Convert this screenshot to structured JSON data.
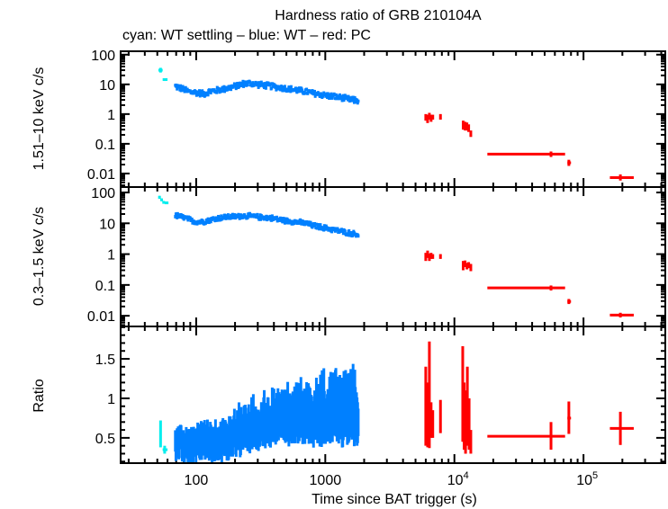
{
  "chart_data": {
    "type": "scatter",
    "title": "Hardness ratio of GRB 210104A",
    "subtitle": "cyan: WT settling – blue: WT – red: PC",
    "xlabel": "Time since BAT trigger (s)",
    "xscale": "log",
    "xlim": [
      26,
      430000
    ],
    "x_ticks": [
      {
        "value": 100,
        "label": "100",
        "sup": ""
      },
      {
        "value": 1000,
        "label": "1000",
        "sup": ""
      },
      {
        "value": 10000,
        "label": "10",
        "sup": "4"
      },
      {
        "value": 100000,
        "label": "10",
        "sup": "5"
      }
    ],
    "colors": {
      "wt_settling": "#00eeee",
      "wt": "#0080ff",
      "pc": "#ff0000",
      "axis": "#000000"
    },
    "panels": [
      {
        "id": "hard",
        "ylabel": "1.51–10 keV c/s",
        "yscale": "log",
        "ylim": [
          0.0035,
          130
        ],
        "y_ticks": [
          {
            "value": 100,
            "label": "100"
          },
          {
            "value": 10,
            "label": "10"
          },
          {
            "value": 1,
            "label": "1"
          },
          {
            "value": 0.1,
            "label": "0.1"
          },
          {
            "value": 0.01,
            "label": "0.01"
          }
        ],
        "series": [
          {
            "name": "WT settling",
            "color_key": "wt_settling",
            "points": [
              {
                "x": 53,
                "y": 30,
                "xlo": 51,
                "xhi": 55,
                "ylo": 25,
                "yhi": 36
              },
              {
                "x": 57,
                "y": 14.5,
                "xlo": 55,
                "xhi": 60,
                "ylo": 13,
                "yhi": 16
              }
            ]
          },
          {
            "name": "WT",
            "color_key": "wt",
            "trend": [
              [
                69,
                8.7
              ],
              [
                78,
                7.0
              ],
              [
                89,
                5.6
              ],
              [
                100,
                5.3
              ],
              [
                115,
                4.8
              ],
              [
                130,
                5.8
              ],
              [
                145,
                6.3
              ],
              [
                170,
                7.2
              ],
              [
                200,
                8.5
              ],
              [
                233,
                10.5
              ],
              [
                260,
                10.8
              ],
              [
                300,
                10.0
              ],
              [
                340,
                9.2
              ],
              [
                377,
                8.8
              ],
              [
                430,
                8.0
              ],
              [
                500,
                7.2
              ],
              [
                610,
                6.3
              ],
              [
                700,
                5.8
              ],
              [
                800,
                5.0
              ],
              [
                1000,
                4.3
              ],
              [
                1200,
                3.8
              ],
              [
                1400,
                3.4
              ],
              [
                1600,
                3.0
              ],
              [
                1800,
                2.8
              ]
            ],
            "scatter_dex": 0.09
          },
          {
            "name": "PC",
            "color_key": "pc",
            "points": [
              {
                "x": 6000,
                "y": 0.8,
                "xlo": 5900,
                "xhi": 6100,
                "ylo": 0.6,
                "yhi": 1.0
              },
              {
                "x": 6200,
                "y": 0.7,
                "xlo": 6100,
                "xhi": 6300,
                "ylo": 0.5,
                "yhi": 0.95
              },
              {
                "x": 6400,
                "y": 0.85,
                "xlo": 6300,
                "xhi": 6500,
                "ylo": 0.65,
                "yhi": 1.1
              },
              {
                "x": 6600,
                "y": 0.75,
                "xlo": 6500,
                "xhi": 6700,
                "ylo": 0.55,
                "yhi": 0.95
              },
              {
                "x": 6800,
                "y": 0.8,
                "xlo": 6700,
                "xhi": 6900,
                "ylo": 0.65,
                "yhi": 0.95
              },
              {
                "x": 7800,
                "y": 0.8,
                "xlo": 7700,
                "xhi": 7900,
                "ylo": 0.65,
                "yhi": 1.0
              },
              {
                "x": 11700,
                "y": 0.45,
                "xlo": 11500,
                "xhi": 11900,
                "ylo": 0.3,
                "yhi": 0.6
              },
              {
                "x": 12100,
                "y": 0.38,
                "xlo": 11900,
                "xhi": 12300,
                "ylo": 0.28,
                "yhi": 0.55
              },
              {
                "x": 12500,
                "y": 0.4,
                "xlo": 12300,
                "xhi": 12700,
                "ylo": 0.28,
                "yhi": 0.52
              },
              {
                "x": 12900,
                "y": 0.32,
                "xlo": 12700,
                "xhi": 13100,
                "ylo": 0.25,
                "yhi": 0.45
              },
              {
                "x": 13400,
                "y": 0.22,
                "xlo": 13200,
                "xhi": 13600,
                "ylo": 0.17,
                "yhi": 0.28
              },
              {
                "x": 56000,
                "y": 0.045,
                "xlo": 18000,
                "xhi": 72000,
                "ylo": 0.036,
                "yhi": 0.055
              },
              {
                "x": 77000,
                "y": 0.023,
                "xlo": 75000,
                "xhi": 80000,
                "ylo": 0.018,
                "yhi": 0.029
              },
              {
                "x": 193000,
                "y": 0.0073,
                "xlo": 160000,
                "xhi": 245000,
                "ylo": 0.0058,
                "yhi": 0.0093
              }
            ]
          }
        ]
      },
      {
        "id": "soft",
        "ylabel": "0.3–1.5 keV c/s",
        "yscale": "log",
        "ylim": [
          0.0045,
          150
        ],
        "y_ticks": [
          {
            "value": 100,
            "label": "100"
          },
          {
            "value": 10,
            "label": "10"
          },
          {
            "value": 1,
            "label": "1"
          },
          {
            "value": 0.1,
            "label": "0.1"
          },
          {
            "value": 0.01,
            "label": "0.01"
          }
        ],
        "series": [
          {
            "name": "WT settling",
            "color_key": "wt_settling",
            "points": [
              {
                "x": 52,
                "y": 70,
                "xlo": 51,
                "xhi": 53,
                "ylo": 62,
                "yhi": 78
              },
              {
                "x": 54,
                "y": 58,
                "xlo": 53,
                "xhi": 55,
                "ylo": 52,
                "yhi": 64
              },
              {
                "x": 56,
                "y": 48,
                "xlo": 55,
                "xhi": 57,
                "ylo": 43,
                "yhi": 53
              },
              {
                "x": 59,
                "y": 46,
                "xlo": 57,
                "xhi": 61,
                "ylo": 42,
                "yhi": 50
              }
            ]
          },
          {
            "name": "WT",
            "color_key": "wt",
            "trend": [
              [
                69,
                18
              ],
              [
                78,
                16
              ],
              [
                89,
                13
              ],
              [
                100,
                11
              ],
              [
                115,
                11.5
              ],
              [
                130,
                13
              ],
              [
                145,
                14.5
              ],
              [
                170,
                16
              ],
              [
                200,
                16.5
              ],
              [
                233,
                17.5
              ],
              [
                260,
                17
              ],
              [
                300,
                16
              ],
              [
                340,
                15.5
              ],
              [
                377,
                15
              ],
              [
                430,
                13.5
              ],
              [
                500,
                12
              ],
              [
                610,
                11
              ],
              [
                700,
                10
              ],
              [
                800,
                8.5
              ],
              [
                1000,
                7
              ],
              [
                1200,
                6
              ],
              [
                1400,
                5.2
              ],
              [
                1600,
                4.7
              ],
              [
                1800,
                4.3
              ]
            ],
            "scatter_dex": 0.07
          },
          {
            "name": "PC",
            "color_key": "pc",
            "points": [
              {
                "x": 6000,
                "y": 0.85,
                "xlo": 5900,
                "xhi": 6100,
                "ylo": 0.6,
                "yhi": 1.1
              },
              {
                "x": 6200,
                "y": 1.0,
                "xlo": 6100,
                "xhi": 6300,
                "ylo": 0.75,
                "yhi": 1.3
              },
              {
                "x": 6400,
                "y": 0.8,
                "xlo": 6300,
                "xhi": 6500,
                "ylo": 0.6,
                "yhi": 1.05
              },
              {
                "x": 6600,
                "y": 0.9,
                "xlo": 6500,
                "xhi": 6700,
                "ylo": 0.7,
                "yhi": 1.1
              },
              {
                "x": 6800,
                "y": 0.85,
                "xlo": 6700,
                "xhi": 6900,
                "ylo": 0.7,
                "yhi": 1.0
              },
              {
                "x": 7800,
                "y": 0.85,
                "xlo": 7700,
                "xhi": 7900,
                "ylo": 0.7,
                "yhi": 1.0
              },
              {
                "x": 11700,
                "y": 0.45,
                "xlo": 11500,
                "xhi": 11900,
                "ylo": 0.3,
                "yhi": 0.6
              },
              {
                "x": 12100,
                "y": 0.5,
                "xlo": 11900,
                "xhi": 12300,
                "ylo": 0.38,
                "yhi": 0.62
              },
              {
                "x": 12500,
                "y": 0.42,
                "xlo": 12300,
                "xhi": 12700,
                "ylo": 0.32,
                "yhi": 0.52
              },
              {
                "x": 12900,
                "y": 0.45,
                "xlo": 12700,
                "xhi": 13100,
                "ylo": 0.35,
                "yhi": 0.55
              },
              {
                "x": 13400,
                "y": 0.38,
                "xlo": 13200,
                "xhi": 13600,
                "ylo": 0.28,
                "yhi": 0.48
              },
              {
                "x": 56000,
                "y": 0.08,
                "xlo": 18000,
                "xhi": 72000,
                "ylo": 0.066,
                "yhi": 0.096
              },
              {
                "x": 77000,
                "y": 0.029,
                "xlo": 75000,
                "xhi": 80000,
                "ylo": 0.024,
                "yhi": 0.035
              },
              {
                "x": 193000,
                "y": 0.0105,
                "xlo": 160000,
                "xhi": 245000,
                "ylo": 0.0088,
                "yhi": 0.0125
              }
            ]
          }
        ]
      },
      {
        "id": "ratio",
        "ylabel": "Ratio",
        "yscale": "linear",
        "ylim": [
          0.18,
          1.91
        ],
        "y_ticks": [
          {
            "value": 1.5,
            "label": "1.5"
          },
          {
            "value": 1,
            "label": "1"
          },
          {
            "value": 0.5,
            "label": "0.5"
          }
        ],
        "y_minor_step": 0.1,
        "series": [
          {
            "name": "WT settling",
            "color_key": "wt_settling",
            "points": [
              {
                "x": 53,
                "y": 0.5,
                "xlo": 52,
                "xhi": 54,
                "ylo": 0.38,
                "yhi": 0.72
              },
              {
                "x": 57,
                "y": 0.35,
                "xlo": 55,
                "xhi": 60,
                "ylo": 0.3,
                "yhi": 0.4
              }
            ]
          },
          {
            "name": "WT",
            "color_key": "wt",
            "trend": [
              [
                69,
                0.42
              ],
              [
                78,
                0.4
              ],
              [
                89,
                0.38
              ],
              [
                100,
                0.4
              ],
              [
                115,
                0.45
              ],
              [
                130,
                0.38
              ],
              [
                145,
                0.4
              ],
              [
                170,
                0.45
              ],
              [
                200,
                0.5
              ],
              [
                233,
                0.55
              ],
              [
                260,
                0.58
              ],
              [
                300,
                0.6
              ],
              [
                340,
                0.62
              ],
              [
                377,
                0.65
              ],
              [
                430,
                0.68
              ],
              [
                500,
                0.7
              ],
              [
                610,
                0.72
              ],
              [
                700,
                0.72
              ],
              [
                800,
                0.7
              ],
              [
                1000,
                0.72
              ],
              [
                1200,
                0.72
              ],
              [
                1400,
                0.7
              ],
              [
                1600,
                0.7
              ],
              [
                1800,
                0.7
              ]
            ],
            "err_low": [
              0.12,
              0.3
            ],
            "err_high": [
              0.15,
              0.7
            ]
          },
          {
            "name": "PC",
            "color_key": "pc",
            "points": [
              {
                "x": 6000,
                "y": 0.9,
                "xlo": 5950,
                "xhi": 6050,
                "ylo": 0.4,
                "yhi": 1.4
              },
              {
                "x": 6200,
                "y": 0.8,
                "xlo": 6150,
                "xhi": 6250,
                "ylo": 0.38,
                "yhi": 1.2
              },
              {
                "x": 6400,
                "y": 1.1,
                "xlo": 6350,
                "xhi": 6450,
                "ylo": 0.37,
                "yhi": 1.72
              },
              {
                "x": 6600,
                "y": 0.75,
                "xlo": 6550,
                "xhi": 6650,
                "ylo": 0.5,
                "yhi": 0.95
              },
              {
                "x": 6800,
                "y": 0.7,
                "xlo": 6750,
                "xhi": 6850,
                "ylo": 0.5,
                "yhi": 0.85
              },
              {
                "x": 7800,
                "y": 0.77,
                "xlo": 7700,
                "xhi": 7900,
                "ylo": 0.56,
                "yhi": 0.98
              },
              {
                "x": 11600,
                "y": 0.9,
                "xlo": 11550,
                "xhi": 11650,
                "ylo": 0.45,
                "yhi": 1.66
              },
              {
                "x": 11900,
                "y": 0.8,
                "xlo": 11850,
                "xhi": 11950,
                "ylo": 0.35,
                "yhi": 1.2
              },
              {
                "x": 12200,
                "y": 0.7,
                "xlo": 12150,
                "xhi": 12250,
                "ylo": 0.3,
                "yhi": 1.1
              },
              {
                "x": 12600,
                "y": 0.9,
                "xlo": 12550,
                "xhi": 12650,
                "ylo": 0.4,
                "yhi": 1.4
              },
              {
                "x": 13000,
                "y": 0.6,
                "xlo": 12950,
                "xhi": 13050,
                "ylo": 0.35,
                "yhi": 1.0
              },
              {
                "x": 13400,
                "y": 0.45,
                "xlo": 13300,
                "xhi": 13500,
                "ylo": 0.3,
                "yhi": 0.6
              },
              {
                "x": 56000,
                "y": 0.52,
                "xlo": 18000,
                "xhi": 72000,
                "ylo": 0.35,
                "yhi": 0.7
              },
              {
                "x": 77000,
                "y": 0.75,
                "xlo": 75000,
                "xhi": 80000,
                "ylo": 0.55,
                "yhi": 0.96
              },
              {
                "x": 193000,
                "y": 0.62,
                "xlo": 160000,
                "xhi": 245000,
                "ylo": 0.41,
                "yhi": 0.83
              }
            ]
          }
        ]
      }
    ]
  }
}
